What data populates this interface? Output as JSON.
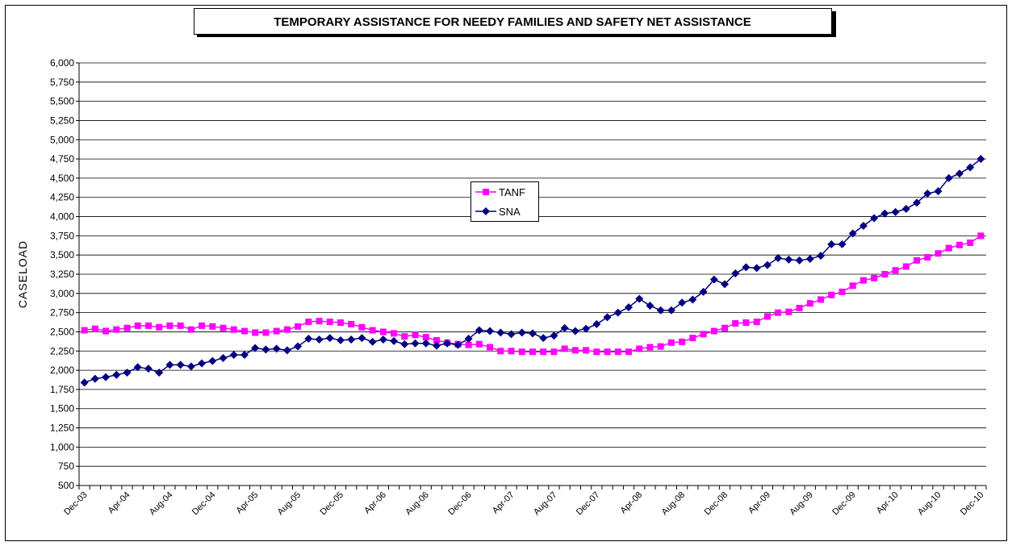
{
  "chart_data": {
    "type": "line",
    "title": "TEMPORARY ASSISTANCE FOR NEEDY FAMILIES AND SAFETY NET ASSISTANCE",
    "y_label": "CASELOAD",
    "categories": [
      "Dec-03",
      null,
      null,
      null,
      "Apr-04",
      null,
      null,
      null,
      "Aug-04",
      null,
      null,
      null,
      "Dec-04",
      null,
      null,
      null,
      "Apr-05",
      null,
      null,
      null,
      "Aug-05",
      null,
      null,
      null,
      "Dec-05",
      null,
      null,
      null,
      "Apr-06",
      null,
      null,
      null,
      "Aug-06",
      null,
      null,
      null,
      "Dec-06",
      null,
      null,
      null,
      "Apr-07",
      null,
      null,
      null,
      "Aug-07",
      null,
      null,
      null,
      "Dec-07",
      null,
      null,
      null,
      "Apr-08",
      null,
      null,
      null,
      "Aug-08",
      null,
      null,
      null,
      "Dec-08",
      null,
      null,
      null,
      "Apr-09",
      null,
      null,
      null,
      "Aug-09",
      null,
      null,
      null,
      "Dec-09",
      null,
      null,
      null,
      "Apr-10",
      null,
      null,
      null,
      "Aug-10",
      null,
      null,
      null,
      "Dec-10"
    ],
    "series": [
      {
        "name": "TANF",
        "color": "#ff00ff",
        "marker": "square",
        "values": [
          2520,
          2540,
          2510,
          2530,
          2550,
          2580,
          2580,
          2560,
          2580,
          2580,
          2530,
          2580,
          2570,
          2550,
          2530,
          2510,
          2490,
          2490,
          2510,
          2530,
          2570,
          2630,
          2640,
          2630,
          2620,
          2600,
          2560,
          2520,
          2500,
          2480,
          2440,
          2460,
          2430,
          2390,
          2360,
          2340,
          2330,
          2340,
          2300,
          2250,
          2250,
          2240,
          2240,
          2240,
          2240,
          2280,
          2260,
          2260,
          2240,
          2240,
          2240,
          2240,
          2280,
          2300,
          2310,
          2360,
          2370,
          2420,
          2470,
          2510,
          2550,
          2610,
          2620,
          2630,
          2700,
          2750,
          2760,
          2810,
          2870,
          2920,
          2980,
          3020,
          3100,
          3170,
          3200,
          3250,
          3300,
          3350,
          3430,
          3470,
          3520,
          3590,
          3630,
          3660,
          3750
        ]
      },
      {
        "name": "SNA",
        "color": "#000080",
        "marker": "diamond",
        "values": [
          1840,
          1890,
          1910,
          1940,
          1970,
          2040,
          2020,
          1970,
          2070,
          2070,
          2050,
          2090,
          2120,
          2160,
          2200,
          2200,
          2290,
          2270,
          2280,
          2260,
          2310,
          2410,
          2400,
          2420,
          2390,
          2400,
          2420,
          2370,
          2400,
          2380,
          2340,
          2350,
          2350,
          2320,
          2350,
          2330,
          2410,
          2520,
          2510,
          2490,
          2470,
          2490,
          2480,
          2420,
          2450,
          2550,
          2510,
          2540,
          2600,
          2690,
          2750,
          2820,
          2930,
          2840,
          2780,
          2780,
          2880,
          2920,
          3020,
          3180,
          3120,
          3260,
          3340,
          3330,
          3370,
          3460,
          3440,
          3430,
          3450,
          3490,
          3640,
          3640,
          3780,
          3880,
          3980,
          4040,
          4060,
          4100,
          4180,
          4300,
          4330,
          4500,
          4560,
          4640,
          4750
        ]
      }
    ],
    "ylim": [
      500,
      6000
    ],
    "yticks": [
      500,
      750,
      {
        "value": 1000,
        "label": "1,000"
      },
      {
        "value": 1250,
        "label": "1,250"
      },
      {
        "value": 1500,
        "label": "1,500"
      },
      {
        "value": 1750,
        "label": "1,750"
      },
      {
        "value": 2000,
        "label": "2,000"
      },
      {
        "value": 2250,
        "label": "2,250"
      },
      {
        "value": 2500,
        "label": "2,500"
      },
      {
        "value": 2750,
        "label": "2,750"
      },
      {
        "value": 3000,
        "label": "3,000"
      },
      {
        "value": 3250,
        "label": "3,250"
      },
      {
        "value": 3500,
        "label": "3,500"
      },
      {
        "value": 3750,
        "label": "3,750"
      },
      {
        "value": 4000,
        "label": "4,000"
      },
      {
        "value": 4250,
        "label": "4,250"
      },
      {
        "value": 4500,
        "label": "4,500"
      },
      {
        "value": 4750,
        "label": "4,750"
      },
      {
        "value": 5000,
        "label": "5,000"
      },
      {
        "value": 5250,
        "label": "5,250"
      },
      {
        "value": 5500,
        "label": "5,500"
      },
      {
        "value": 5750,
        "label": "5,750"
      },
      {
        "value": 6000,
        "label": "6,000"
      }
    ],
    "grid": true
  }
}
